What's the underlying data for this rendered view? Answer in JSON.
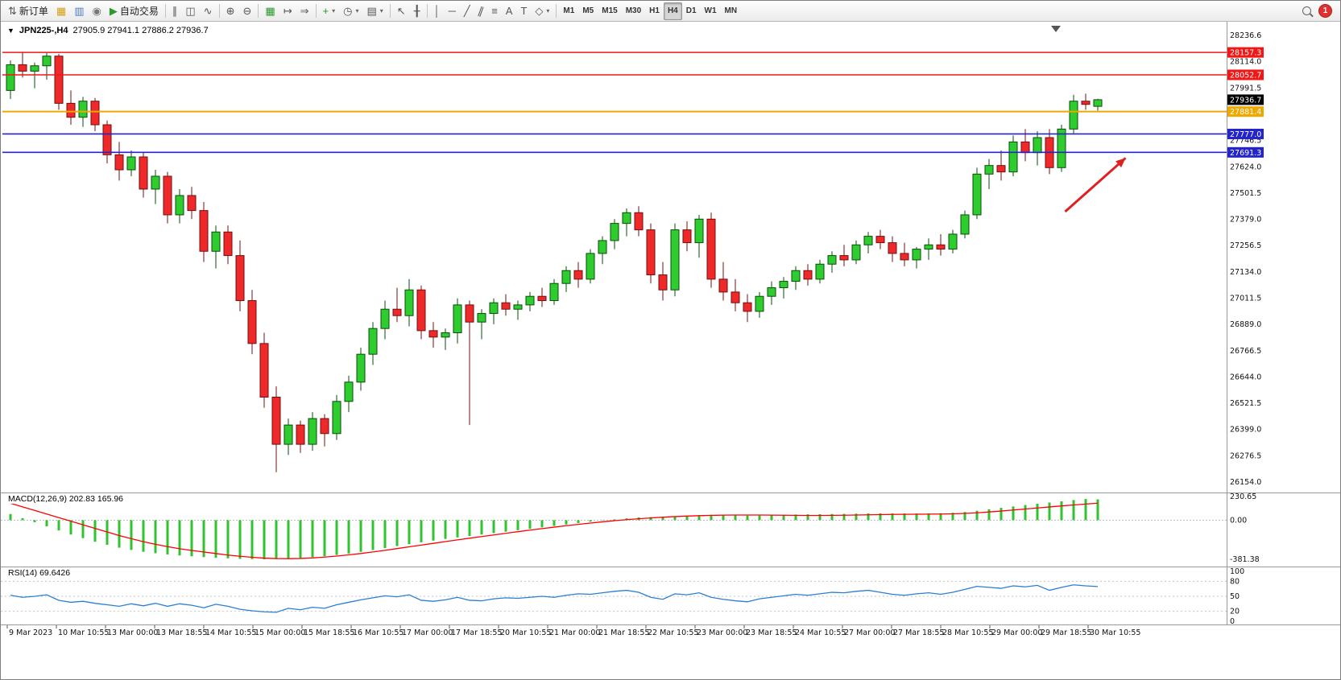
{
  "colors": {
    "bull": "#2ecc2e",
    "bull_border": "#0a4d0a",
    "bear": "#ef2929",
    "bear_border": "#701010",
    "macd_hist": "#2fc42f",
    "macd_signal": "#ff0000",
    "rsi_line": "#2a7fd4",
    "line_red": "#f21616",
    "line_orange": "#efa800",
    "line_blue": "#2424cc",
    "current_price_bg": "#000000",
    "arrow": "#e02020"
  },
  "toolbar": {
    "groups": [
      {
        "name": "trade",
        "items": [
          {
            "name": "new-order-button",
            "icon": "new-order-icon",
            "label": "新订单"
          },
          {
            "name": "new-chart-button",
            "icon": "new-chart-icon",
            "color": "#d4a017"
          },
          {
            "name": "profiles-button",
            "icon": "profiles-icon",
            "color": "#4a7ac8"
          },
          {
            "name": "market-watch-button",
            "icon": "market-watch-icon",
            "color": "#777777"
          },
          {
            "name": "auto-trading-button",
            "icon": "autotrading-icon",
            "label": "自动交易",
            "color": "#2a9a2a"
          }
        ]
      },
      {
        "name": "chart-type",
        "items": [
          {
            "name": "bar-chart-button",
            "icon": "bars-icon"
          },
          {
            "name": "candlestick-button",
            "icon": "candles-icon"
          },
          {
            "name": "line-chart-button",
            "icon": "line-chart-icon"
          }
        ]
      },
      {
        "name": "zoom",
        "items": [
          {
            "name": "zoom-in-button",
            "icon": "zoom-in-icon"
          },
          {
            "name": "zoom-out-button",
            "icon": "zoom-out-icon"
          }
        ]
      },
      {
        "name": "window",
        "items": [
          {
            "name": "tile-windows-button",
            "icon": "tile-windows-icon",
            "color": "#2a9a2a"
          },
          {
            "name": "auto-scroll-button",
            "icon": "autoscroll-icon"
          },
          {
            "name": "chart-shift-button",
            "icon": "chart-shift-icon"
          }
        ]
      },
      {
        "name": "objects-main",
        "items": [
          {
            "name": "indicators-button",
            "icon": "indicators-icon",
            "color": "#1c9a1c",
            "caret": true
          },
          {
            "name": "periods-button",
            "icon": "periods-icon",
            "caret": true
          },
          {
            "name": "templates-button",
            "icon": "templates-icon",
            "caret": true
          }
        ]
      },
      {
        "name": "pointer",
        "items": [
          {
            "name": "cursor-button",
            "icon": "cursor-icon"
          },
          {
            "name": "crosshair-button",
            "icon": "crosshair-icon"
          }
        ]
      },
      {
        "name": "line-studies",
        "items": [
          {
            "name": "vertical-line-button",
            "icon": "vline-icon"
          },
          {
            "name": "horizontal-line-button",
            "icon": "hline-icon"
          },
          {
            "name": "trendline-button",
            "icon": "trendline-icon"
          },
          {
            "name": "channel-button",
            "icon": "channel-icon"
          },
          {
            "name": "fibonacci-button",
            "icon": "fibonacci-icon"
          },
          {
            "name": "text-button",
            "icon": "text-icon"
          },
          {
            "name": "label-button",
            "icon": "label-icon"
          },
          {
            "name": "arrows-button",
            "icon": "shapes-icon",
            "caret": true
          }
        ]
      },
      {
        "name": "timeframes",
        "items": [
          {
            "name": "tf-m1",
            "label": "M1"
          },
          {
            "name": "tf-m5",
            "label": "M5"
          },
          {
            "name": "tf-m15",
            "label": "M15"
          },
          {
            "name": "tf-m30",
            "label": "M30"
          },
          {
            "name": "tf-h1",
            "label": "H1"
          },
          {
            "name": "tf-h4",
            "label": "H4",
            "active": true
          },
          {
            "name": "tf-d1",
            "label": "D1"
          },
          {
            "name": "tf-w1",
            "label": "W1"
          },
          {
            "name": "tf-mn",
            "label": "MN"
          }
        ]
      }
    ],
    "right_items": [
      {
        "name": "search-button",
        "icon": "search-icon"
      },
      {
        "name": "notification-badge",
        "label": "1",
        "badge": true
      }
    ]
  },
  "chart_header": {
    "symbol_period": "JPN225-,H4",
    "ohlc": "27905.9 27941.1 27886.2 27936.7"
  },
  "hlines": [
    {
      "price": 28157.3,
      "label": "28157.3",
      "color": "#f21616",
      "width": 1.4
    },
    {
      "price": 28052.7,
      "label": "28052.7",
      "color": "#f21616",
      "width": 1.4
    },
    {
      "price": 27881.4,
      "label": "27881.4",
      "color": "#efa800",
      "width": 2
    },
    {
      "price": 27777.0,
      "label": "27777.0",
      "color": "#2424cc",
      "width": 1.6
    },
    {
      "price": 27691.3,
      "label": "27691.3",
      "color": "#2424cc",
      "width": 1.6
    }
  ],
  "current_price": {
    "price": 27936.7,
    "label": "27936.7",
    "bg": "#000000"
  },
  "annotation_arrow": {
    "color": "#e02020",
    "from_bar": 87.3,
    "from_price": 27415,
    "to_bar": 92.3,
    "to_price": 27665
  },
  "macd_panel": {
    "label": "MACD(12,26,9) 202.83 165.96"
  },
  "rsi_panel": {
    "label": "RSI(14) 69.6426"
  },
  "chart_data": [
    {
      "type": "candlestick",
      "title": "JPN225-,H4",
      "timeframe": "H4",
      "ylim": [
        26143.5,
        28236.6
      ],
      "y_ticks": [
        "28236.6",
        "28114.0",
        "27991.5",
        "27869.0",
        "27746.5",
        "27624.0",
        "27501.5",
        "27379.0",
        "27256.5",
        "27134.0",
        "27011.5",
        "26889.0",
        "26766.5",
        "26644.0",
        "26521.5",
        "26399.0",
        "26276.5",
        "26154.0"
      ],
      "x_labels": [
        "9 Mar 2023",
        "10 Mar 10:55",
        "13 Mar 00:00",
        "13 Mar 18:55",
        "14 Mar 10:55",
        "15 Mar 00:00",
        "15 Mar 18:55",
        "16 Mar 10:55",
        "17 Mar 00:00",
        "17 Mar 18:55",
        "20 Mar 10:55",
        "21 Mar 00:00",
        "21 Mar 18:55",
        "22 Mar 10:55",
        "23 Mar 00:00",
        "23 Mar 18:55",
        "24 Mar 10:55",
        "27 Mar 00:00",
        "27 Mar 18:55",
        "28 Mar 10:55",
        "29 Mar 00:00",
        "29 Mar 18:55",
        "30 Mar 10:55"
      ],
      "ohlc": [
        [
          27980,
          28120,
          27940,
          28100
        ],
        [
          28100,
          28160,
          28040,
          28070
        ],
        [
          28070,
          28110,
          27990,
          28095
        ],
        [
          28095,
          28157,
          28030,
          28140
        ],
        [
          28140,
          28150,
          27890,
          27920
        ],
        [
          27920,
          27980,
          27820,
          27855
        ],
        [
          27855,
          27950,
          27810,
          27930
        ],
        [
          27930,
          27945,
          27790,
          27820
        ],
        [
          27820,
          27840,
          27640,
          27680
        ],
        [
          27680,
          27740,
          27560,
          27610
        ],
        [
          27610,
          27700,
          27580,
          27670
        ],
        [
          27670,
          27690,
          27480,
          27520
        ],
        [
          27520,
          27610,
          27450,
          27580
        ],
        [
          27580,
          27600,
          27360,
          27400
        ],
        [
          27400,
          27520,
          27360,
          27490
        ],
        [
          27490,
          27530,
          27380,
          27420
        ],
        [
          27420,
          27460,
          27180,
          27230
        ],
        [
          27230,
          27350,
          27150,
          27320
        ],
        [
          27320,
          27350,
          27170,
          27210
        ],
        [
          27210,
          27280,
          26950,
          27000
        ],
        [
          27000,
          27050,
          26750,
          26800
        ],
        [
          26800,
          26850,
          26500,
          26550
        ],
        [
          26550,
          26600,
          26200,
          26330
        ],
        [
          26330,
          26450,
          26280,
          26420
        ],
        [
          26420,
          26440,
          26290,
          26330
        ],
        [
          26330,
          26480,
          26300,
          26450
        ],
        [
          26450,
          26470,
          26320,
          26380
        ],
        [
          26380,
          26560,
          26350,
          26530
        ],
        [
          26530,
          26650,
          26480,
          26620
        ],
        [
          26620,
          26780,
          26580,
          26750
        ],
        [
          26750,
          26900,
          26700,
          26870
        ],
        [
          26870,
          27000,
          26820,
          26960
        ],
        [
          26960,
          27060,
          26900,
          26930
        ],
        [
          26930,
          27100,
          26880,
          27050
        ],
        [
          27050,
          27070,
          26820,
          26860
        ],
        [
          26860,
          26900,
          26780,
          26830
        ],
        [
          26830,
          26870,
          26770,
          26850
        ],
        [
          26850,
          27010,
          26800,
          26980
        ],
        [
          26980,
          27000,
          26420,
          26900
        ],
        [
          26900,
          26960,
          26820,
          26940
        ],
        [
          26940,
          27010,
          26890,
          26990
        ],
        [
          26990,
          27030,
          26930,
          26960
        ],
        [
          26960,
          27000,
          26910,
          26980
        ],
        [
          26980,
          27040,
          26950,
          27020
        ],
        [
          27020,
          27060,
          26970,
          27000
        ],
        [
          27000,
          27100,
          26980,
          27080
        ],
        [
          27080,
          27160,
          27040,
          27140
        ],
        [
          27140,
          27180,
          27060,
          27100
        ],
        [
          27100,
          27240,
          27080,
          27220
        ],
        [
          27220,
          27300,
          27170,
          27280
        ],
        [
          27280,
          27380,
          27240,
          27360
        ],
        [
          27360,
          27430,
          27300,
          27410
        ],
        [
          27410,
          27440,
          27300,
          27330
        ],
        [
          27330,
          27360,
          27080,
          27120
        ],
        [
          27120,
          27180,
          27000,
          27050
        ],
        [
          27050,
          27360,
          27020,
          27330
        ],
        [
          27330,
          27370,
          27230,
          27270
        ],
        [
          27270,
          27400,
          27200,
          27380
        ],
        [
          27380,
          27410,
          27060,
          27100
        ],
        [
          27100,
          27180,
          27000,
          27040
        ],
        [
          27040,
          27100,
          26950,
          26990
        ],
        [
          26990,
          27030,
          26900,
          26950
        ],
        [
          26950,
          27040,
          26920,
          27020
        ],
        [
          27020,
          27090,
          26980,
          27060
        ],
        [
          27060,
          27110,
          27010,
          27090
        ],
        [
          27090,
          27160,
          27050,
          27140
        ],
        [
          27140,
          27170,
          27070,
          27100
        ],
        [
          27100,
          27190,
          27080,
          27170
        ],
        [
          27170,
          27230,
          27130,
          27210
        ],
        [
          27210,
          27260,
          27160,
          27190
        ],
        [
          27190,
          27280,
          27170,
          27260
        ],
        [
          27260,
          27320,
          27220,
          27300
        ],
        [
          27300,
          27330,
          27240,
          27270
        ],
        [
          27270,
          27300,
          27180,
          27220
        ],
        [
          27220,
          27270,
          27160,
          27190
        ],
        [
          27190,
          27250,
          27150,
          27240
        ],
        [
          27240,
          27290,
          27190,
          27260
        ],
        [
          27260,
          27310,
          27210,
          27240
        ],
        [
          27240,
          27330,
          27220,
          27310
        ],
        [
          27310,
          27420,
          27290,
          27400
        ],
        [
          27400,
          27620,
          27380,
          27590
        ],
        [
          27590,
          27660,
          27520,
          27630
        ],
        [
          27630,
          27700,
          27560,
          27600
        ],
        [
          27600,
          27770,
          27580,
          27740
        ],
        [
          27740,
          27800,
          27650,
          27690
        ],
        [
          27690,
          27790,
          27630,
          27760
        ],
        [
          27760,
          27800,
          27590,
          27620
        ],
        [
          27620,
          27820,
          27600,
          27800
        ],
        [
          27800,
          27960,
          27780,
          27930
        ],
        [
          27930,
          27965,
          27890,
          27915
        ],
        [
          27905.9,
          27941.1,
          27886.2,
          27936.7
        ]
      ]
    },
    {
      "type": "bar",
      "name": "MACD(12,26,9)",
      "ylim": [
        -381.38,
        230.65
      ],
      "scale_ticks": [
        "230.65",
        "0.00",
        "-381.38"
      ],
      "current_macd": 202.83,
      "current_signal": 165.96,
      "values": [
        60,
        20,
        -20,
        -60,
        -100,
        -140,
        -175,
        -210,
        -240,
        -268,
        -290,
        -308,
        -322,
        -334,
        -344,
        -352,
        -360,
        -366,
        -372,
        -377,
        -380,
        -381,
        -379,
        -375,
        -369,
        -361,
        -351,
        -339,
        -325,
        -309,
        -291,
        -272,
        -253,
        -234,
        -216,
        -199,
        -183,
        -168,
        -154,
        -140,
        -126,
        -112,
        -98,
        -84,
        -70,
        -56,
        -42,
        -28,
        -15,
        -3,
        8,
        18,
        27,
        30,
        28,
        32,
        40,
        48,
        52,
        50,
        46,
        44,
        45,
        48,
        52,
        55,
        57,
        58,
        60,
        62,
        64,
        66,
        67,
        67,
        66,
        65,
        66,
        68,
        72,
        80,
        92,
        106,
        120,
        134,
        148,
        160,
        172,
        184,
        196,
        206,
        203
      ],
      "signal": [
        165,
        130,
        95,
        60,
        25,
        -10,
        -45,
        -80,
        -115,
        -150,
        -180,
        -210,
        -235,
        -258,
        -278,
        -295,
        -310,
        -325,
        -340,
        -352,
        -362,
        -370,
        -374,
        -375,
        -373,
        -368,
        -360,
        -350,
        -338,
        -325,
        -310,
        -294,
        -277,
        -260,
        -243,
        -226,
        -209,
        -192,
        -176,
        -160,
        -144,
        -128,
        -112,
        -97,
        -82,
        -68,
        -54,
        -41,
        -28,
        -16,
        -5,
        5,
        14,
        22,
        29,
        35,
        40,
        44,
        47,
        49,
        50,
        50,
        50,
        49,
        48,
        47,
        46,
        46,
        47,
        48,
        50,
        52,
        54,
        56,
        57,
        58,
        59,
        60,
        62,
        66,
        72,
        80,
        89,
        99,
        109,
        119,
        129,
        139,
        148,
        157,
        166
      ]
    },
    {
      "type": "line",
      "name": "RSI(14)",
      "ylim": [
        0,
        100
      ],
      "scale_ticks": [
        "100",
        "80",
        "50",
        "20",
        "0"
      ],
      "levels": [
        80,
        50,
        20
      ],
      "current": 69.6426,
      "values": [
        52,
        48,
        50,
        53,
        42,
        38,
        40,
        36,
        33,
        30,
        35,
        31,
        36,
        30,
        35,
        32,
        27,
        34,
        30,
        24,
        21,
        19,
        18,
        26,
        23,
        28,
        26,
        33,
        38,
        43,
        47,
        51,
        49,
        53,
        42,
        40,
        43,
        48,
        42,
        41,
        45,
        47,
        46,
        48,
        50,
        48,
        52,
        55,
        54,
        57,
        60,
        62,
        58,
        48,
        44,
        55,
        53,
        57,
        48,
        44,
        41,
        39,
        45,
        48,
        51,
        54,
        52,
        55,
        58,
        57,
        60,
        62,
        58,
        54,
        52,
        55,
        57,
        54,
        58,
        64,
        70,
        68,
        66,
        71,
        69,
        72,
        62,
        68,
        73,
        71,
        69.6
      ]
    }
  ]
}
